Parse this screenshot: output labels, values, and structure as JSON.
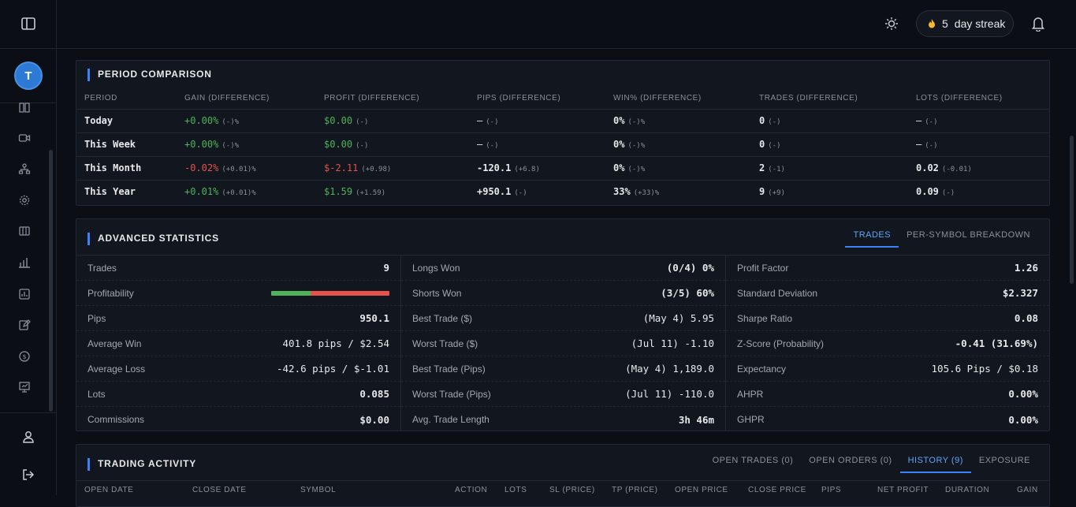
{
  "user": {
    "avatar_initial": "T"
  },
  "topbar": {
    "streak_count": "5",
    "streak_label": "day streak"
  },
  "period": {
    "title": "PERIOD COMPARISON",
    "headers": [
      "PERIOD",
      "GAIN (DIFFERENCE)",
      "PROFIT (DIFFERENCE)",
      "PIPS (DIFFERENCE)",
      "WIN% (DIFFERENCE)",
      "TRADES (DIFFERENCE)",
      "LOTS (DIFFERENCE)"
    ],
    "rows": [
      {
        "label": "Today",
        "gain": "+0.00%",
        "gain_diff": "(-)%",
        "profit": "$0.00",
        "profit_diff": "(-)",
        "pips": "—",
        "pips_diff": "(-)",
        "win": "0%",
        "win_diff": "(-)%",
        "trades": "0",
        "trades_diff": "(-)",
        "lots": "—",
        "lots_diff": "(-)"
      },
      {
        "label": "This Week",
        "gain": "+0.00%",
        "gain_diff": "(-)%",
        "profit": "$0.00",
        "profit_diff": "(-)",
        "pips": "—",
        "pips_diff": "(-)",
        "win": "0%",
        "win_diff": "(-)%",
        "trades": "0",
        "trades_diff": "(-)",
        "lots": "—",
        "lots_diff": "(-)"
      },
      {
        "label": "This Month",
        "gain": "-0.02%",
        "gain_diff": "(+0.01)%",
        "profit": "$-2.11",
        "profit_diff": "(+0.98)",
        "pips": "-120.1",
        "pips_diff": "(+6.8)",
        "win": "0%",
        "win_diff": "(-)%",
        "trades": "2",
        "trades_diff": "(-1)",
        "lots": "0.02",
        "lots_diff": "(-0.01)"
      },
      {
        "label": "This Year",
        "gain": "+0.01%",
        "gain_diff": "(+0.01)%",
        "profit": "$1.59",
        "profit_diff": "(+1.59)",
        "pips": "+950.1",
        "pips_diff": "(-)",
        "win": "33%",
        "win_diff": "(+33)%",
        "trades": "9",
        "trades_diff": "(+9)",
        "lots": "0.09",
        "lots_diff": "(-)"
      }
    ]
  },
  "advanced": {
    "title": "ADVANCED STATISTICS",
    "tabs": [
      "TRADES",
      "PER-SYMBOL BREAKDOWN"
    ],
    "col1": [
      {
        "k": "Trades",
        "v": "9"
      },
      {
        "k": "Profitability",
        "v": ""
      },
      {
        "k": "Pips",
        "v": "950.1"
      },
      {
        "k": "Average Win",
        "v": "401.8 pips / $2.54"
      },
      {
        "k": "Average Loss",
        "v": "-42.6 pips / $-1.01"
      },
      {
        "k": "Lots",
        "v": "0.085"
      },
      {
        "k": "Commissions",
        "v": "$0.00"
      }
    ],
    "profitability_win_fraction": 0.33,
    "col2": [
      {
        "k": "Longs Won",
        "v": "(0/4) 0%"
      },
      {
        "k": "Shorts Won",
        "v": "(3/5) 60%"
      },
      {
        "k": "Best Trade ($)",
        "v": "(May 4) 5.95"
      },
      {
        "k": "Worst Trade ($)",
        "v": "(Jul 11) -1.10"
      },
      {
        "k": "Best Trade (Pips)",
        "v": "(May 4) 1,189.0"
      },
      {
        "k": "Worst Trade (Pips)",
        "v": "(Jul 11) -110.0"
      },
      {
        "k": "Avg. Trade Length",
        "v": "3h 46m"
      }
    ],
    "col3": [
      {
        "k": "Profit Factor",
        "v": "1.26"
      },
      {
        "k": "Standard Deviation",
        "v": "$2.327"
      },
      {
        "k": "Sharpe Ratio",
        "v": "0.08"
      },
      {
        "k": "Z-Score (Probability)",
        "v": "-0.41 (31.69%)"
      },
      {
        "k": "Expectancy",
        "v": "105.6 Pips / $0.18"
      },
      {
        "k": "AHPR",
        "v": "0.00%"
      },
      {
        "k": "GHPR",
        "v": "0.00%"
      }
    ]
  },
  "activity": {
    "title": "TRADING ACTIVITY",
    "tabs": [
      "OPEN TRADES (0)",
      "OPEN ORDERS (0)",
      "HISTORY (9)",
      "EXPOSURE"
    ],
    "columns": [
      "OPEN DATE",
      "CLOSE DATE",
      "SYMBOL",
      "ACTION",
      "LOTS",
      "SL (PRICE)",
      "TP (PRICE)",
      "OPEN PRICE",
      "CLOSE PRICE",
      "PIPS",
      "NET PROFIT",
      "DURATION",
      "GAIN"
    ]
  },
  "colors": {
    "accent": "#3b82f6",
    "positive": "#4fb35a",
    "negative": "#e5534b",
    "background": "#0b0e14",
    "panel": "#12161e"
  }
}
